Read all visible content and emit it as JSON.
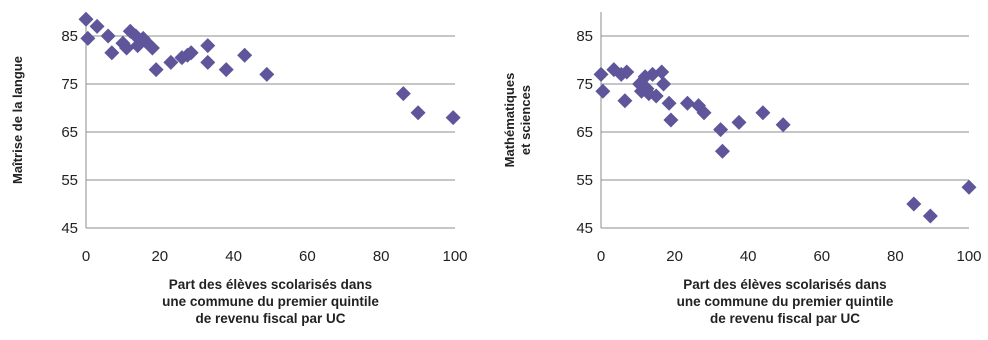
{
  "chart_data": [
    {
      "type": "scatter",
      "title": "",
      "xlabel_lines": [
        "Part des élèves scolarisés dans",
        "une commune du premier quintile",
        "de revenu fiscal par UC"
      ],
      "ylabel_lines": [
        "Maîtrise de la langue"
      ],
      "xlim": [
        0,
        100
      ],
      "ylim": [
        45,
        90
      ],
      "x_ticks": [
        "0",
        "20",
        "40",
        "60",
        "80",
        "100"
      ],
      "y_ticks": [
        "45",
        "55",
        "65",
        "75",
        "85"
      ],
      "grid": "horizontal",
      "marker_color": "#5f559b",
      "points": [
        {
          "x": 0,
          "y": 88.5
        },
        {
          "x": 0.5,
          "y": 84.5
        },
        {
          "x": 3,
          "y": 87
        },
        {
          "x": 6,
          "y": 85
        },
        {
          "x": 7,
          "y": 81.5
        },
        {
          "x": 10,
          "y": 83.5
        },
        {
          "x": 11,
          "y": 82.5
        },
        {
          "x": 12,
          "y": 86
        },
        {
          "x": 13.5,
          "y": 85
        },
        {
          "x": 14,
          "y": 83
        },
        {
          "x": 15.5,
          "y": 84.5
        },
        {
          "x": 16,
          "y": 84
        },
        {
          "x": 18,
          "y": 82.5
        },
        {
          "x": 19,
          "y": 78
        },
        {
          "x": 23,
          "y": 79.5
        },
        {
          "x": 26,
          "y": 80.5
        },
        {
          "x": 27.5,
          "y": 81
        },
        {
          "x": 28.5,
          "y": 81.5
        },
        {
          "x": 33,
          "y": 83
        },
        {
          "x": 33,
          "y": 79.5
        },
        {
          "x": 38,
          "y": 78
        },
        {
          "x": 43,
          "y": 81
        },
        {
          "x": 49,
          "y": 77
        },
        {
          "x": 86,
          "y": 73
        },
        {
          "x": 90,
          "y": 69
        },
        {
          "x": 99.5,
          "y": 68
        }
      ]
    },
    {
      "type": "scatter",
      "title": "",
      "xlabel_lines": [
        "Part des élèves scolarisés dans",
        "une commune du premier quintile",
        "de revenu fiscal par UC"
      ],
      "ylabel_lines": [
        "Mathématiques",
        "et sciences"
      ],
      "xlim": [
        0,
        100
      ],
      "ylim": [
        45,
        90
      ],
      "x_ticks": [
        "0",
        "20",
        "40",
        "60",
        "80",
        "100"
      ],
      "y_ticks": [
        "45",
        "55",
        "65",
        "75",
        "85"
      ],
      "grid": "horizontal",
      "marker_color": "#5f559b",
      "points": [
        {
          "x": 0,
          "y": 77
        },
        {
          "x": 0.5,
          "y": 73.5
        },
        {
          "x": 3.5,
          "y": 78
        },
        {
          "x": 5.5,
          "y": 77
        },
        {
          "x": 6.5,
          "y": 71.5
        },
        {
          "x": 7,
          "y": 77.5
        },
        {
          "x": 10.5,
          "y": 75
        },
        {
          "x": 11,
          "y": 73.5
        },
        {
          "x": 12,
          "y": 76.5
        },
        {
          "x": 12.5,
          "y": 74
        },
        {
          "x": 13,
          "y": 73
        },
        {
          "x": 14,
          "y": 77
        },
        {
          "x": 15,
          "y": 72.5
        },
        {
          "x": 16.5,
          "y": 77.5
        },
        {
          "x": 17,
          "y": 75
        },
        {
          "x": 18.5,
          "y": 71
        },
        {
          "x": 19,
          "y": 67.5
        },
        {
          "x": 23.5,
          "y": 71
        },
        {
          "x": 26.5,
          "y": 70.5
        },
        {
          "x": 28,
          "y": 69
        },
        {
          "x": 32.5,
          "y": 65.5
        },
        {
          "x": 33,
          "y": 61
        },
        {
          "x": 37.5,
          "y": 67
        },
        {
          "x": 44,
          "y": 69
        },
        {
          "x": 49.5,
          "y": 66.5
        },
        {
          "x": 85,
          "y": 50
        },
        {
          "x": 89.5,
          "y": 47.5
        },
        {
          "x": 100,
          "y": 53.5
        }
      ]
    }
  ]
}
